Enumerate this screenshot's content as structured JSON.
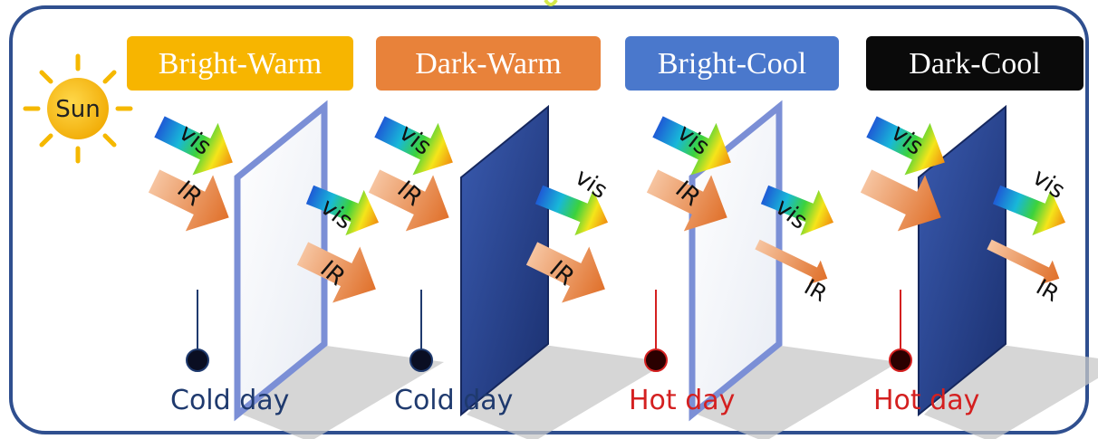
{
  "sun": {
    "label": "Sun",
    "color": "#F5B800"
  },
  "frame_color": "#2F4F8F",
  "panels": [
    {
      "title": "Bright-Warm",
      "title_bg": "#F7B500",
      "title_fg": "#FFFFFF",
      "pane": "bright",
      "incoming": [
        "vis",
        "IR"
      ],
      "outgoing": [
        "vis",
        "IR"
      ],
      "outgoing_style": "transmitted",
      "thermometer": "cold",
      "day_label": "Cold day",
      "day_color": "#1F3A6E"
    },
    {
      "title": "Dark-Warm",
      "title_bg": "#E8823A",
      "title_fg": "#FFFFFF",
      "pane": "dark",
      "incoming": [
        "vis",
        "IR"
      ],
      "outgoing": [
        "vis",
        "IR"
      ],
      "outgoing_style": "emitted-thick",
      "thermometer": "cold",
      "day_label": "Cold day",
      "day_color": "#1F3A6E"
    },
    {
      "title": "Bright-Cool",
      "title_bg": "#4A78CC",
      "title_fg": "#FFFFFF",
      "pane": "bright",
      "incoming": [
        "vis",
        "IR"
      ],
      "outgoing": [
        "vis",
        "IR"
      ],
      "outgoing_style": "transmitted-thin-ir",
      "thermometer": "hot",
      "day_label": "Hot day",
      "day_color": "#D42020"
    },
    {
      "title": "Dark-Cool",
      "title_bg": "#0A0A0A",
      "title_fg": "#FFFFFF",
      "pane": "dark",
      "incoming": [
        "vis",
        ""
      ],
      "outgoing": [
        "vis",
        "IR"
      ],
      "outgoing_style": "emitted-thin-ir",
      "thermometer": "hot",
      "day_label": "Hot day",
      "day_color": "#D42020"
    }
  ]
}
